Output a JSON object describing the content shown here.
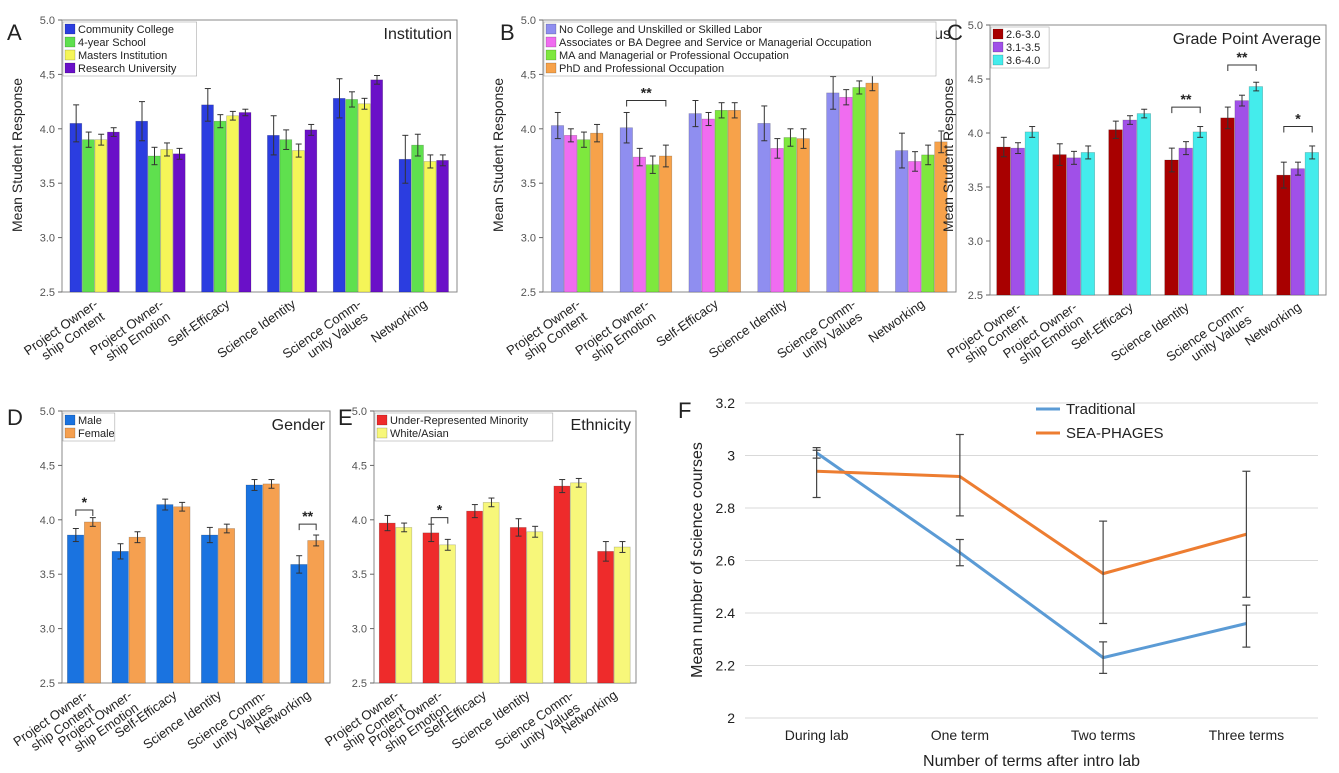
{
  "chart_data": [
    {
      "panel": "A",
      "type": "bar",
      "title": "Institution",
      "ylabel": "Mean Student Response",
      "xlabel": "",
      "ylim": [
        2.5,
        5.0
      ],
      "yticks": [
        "2.5",
        "3.0",
        "3.5",
        "4.0",
        "4.5",
        "5.0"
      ],
      "categories": [
        "Project Owner- ship Content",
        "Project Owner- ship Emotion",
        "Self-Efficacy",
        "Science Identity",
        "Science Comm- unity Values",
        "Networking"
      ],
      "legend_position": "top-left",
      "grid": false,
      "series": [
        {
          "name": "Community College",
          "color": "#2b3de0",
          "values": [
            4.05,
            4.07,
            4.22,
            3.94,
            4.28,
            3.72
          ],
          "err": [
            0.17,
            0.18,
            0.15,
            0.18,
            0.18,
            0.22
          ]
        },
        {
          "name": "4-year School",
          "color": "#5fe04e",
          "values": [
            3.9,
            3.75,
            4.07,
            3.9,
            4.27,
            3.85
          ],
          "err": [
            0.07,
            0.08,
            0.06,
            0.09,
            0.07,
            0.1
          ]
        },
        {
          "name": "Masters Institution",
          "color": "#f5f558",
          "values": [
            3.9,
            3.81,
            4.12,
            3.8,
            4.23,
            3.7
          ],
          "err": [
            0.05,
            0.06,
            0.04,
            0.06,
            0.05,
            0.06
          ]
        },
        {
          "name": "Research University",
          "color": "#6a10c8",
          "values": [
            3.97,
            3.77,
            4.15,
            3.99,
            4.45,
            3.71
          ],
          "err": [
            0.04,
            0.05,
            0.03,
            0.05,
            0.04,
            0.05
          ]
        }
      ],
      "significance": []
    },
    {
      "panel": "B",
      "type": "bar",
      "title": "Parental Socio-Economic Status",
      "ylabel": "Mean Student Response",
      "xlabel": "",
      "ylim": [
        2.5,
        5.0
      ],
      "yticks": [
        "2.5",
        "3.0",
        "3.5",
        "4.0",
        "4.5",
        "5.0"
      ],
      "categories": [
        "Project Owner- ship Content",
        "Project Owner- ship Emotion",
        "Self-Efficacy",
        "Science Identity",
        "Science Comm- unity Values",
        "Networking"
      ],
      "legend_position": "top-left",
      "grid": false,
      "series": [
        {
          "name": "No College and Unskilled or Skilled Labor",
          "color": "#8f8ef0",
          "values": [
            4.03,
            4.01,
            4.14,
            4.05,
            4.33,
            3.8
          ],
          "err": [
            0.12,
            0.14,
            0.12,
            0.16,
            0.15,
            0.16
          ]
        },
        {
          "name": "Associates or BA Degree and Service or Managerial Occupation",
          "color": "#f06cf0",
          "values": [
            3.94,
            3.74,
            4.09,
            3.82,
            4.29,
            3.7
          ],
          "err": [
            0.06,
            0.08,
            0.06,
            0.09,
            0.07,
            0.09
          ]
        },
        {
          "name": "MA and Managerial or Professional Occupation",
          "color": "#7ee83e",
          "values": [
            3.9,
            3.67,
            4.17,
            3.92,
            4.38,
            3.76
          ],
          "err": [
            0.07,
            0.08,
            0.07,
            0.08,
            0.06,
            0.09
          ]
        },
        {
          "name": "PhD and Professional Occupation",
          "color": "#f7a24a",
          "values": [
            3.96,
            3.75,
            4.17,
            3.91,
            4.42,
            3.88
          ],
          "err": [
            0.08,
            0.1,
            0.07,
            0.09,
            0.07,
            0.1
          ]
        }
      ],
      "significance": [
        {
          "cat": 1,
          "label": "**",
          "y": 4.26
        }
      ]
    },
    {
      "panel": "C",
      "type": "bar",
      "title": "Grade Point Average",
      "ylabel": "Mean Student Response",
      "xlabel": "",
      "ylim": [
        2.5,
        5.0
      ],
      "yticks": [
        "2.5",
        "3.0",
        "3.5",
        "4.0",
        "4.5",
        "5.0"
      ],
      "categories": [
        "Project Owner- ship Content",
        "Project Owner- ship Emotion",
        "Self-Efficacy",
        "Science Identity",
        "Science Comm- unity Values",
        "Networking"
      ],
      "legend_position": "top-left",
      "grid": false,
      "series": [
        {
          "name": "2.6-3.0",
          "color": "#a80000",
          "values": [
            3.87,
            3.8,
            4.03,
            3.75,
            4.14,
            3.61
          ],
          "err": [
            0.09,
            0.1,
            0.08,
            0.11,
            0.1,
            0.12
          ]
        },
        {
          "name": "3.1-3.5",
          "color": "#a050e8",
          "values": [
            3.86,
            3.77,
            4.12,
            3.86,
            4.3,
            3.67
          ],
          "err": [
            0.05,
            0.06,
            0.04,
            0.06,
            0.05,
            0.06
          ]
        },
        {
          "name": "3.6-4.0",
          "color": "#44ecec",
          "values": [
            4.01,
            3.82,
            4.18,
            4.01,
            4.43,
            3.82
          ],
          "err": [
            0.05,
            0.06,
            0.04,
            0.05,
            0.04,
            0.06
          ]
        }
      ],
      "significance": [
        {
          "cat": 3,
          "label": "**",
          "y": 4.24
        },
        {
          "cat": 4,
          "label": "**",
          "y": 4.63
        },
        {
          "cat": 5,
          "label": "*",
          "y": 4.06
        }
      ]
    },
    {
      "panel": "D",
      "type": "bar",
      "title": "Gender",
      "ylabel": "",
      "xlabel": "",
      "ylim": [
        2.5,
        5.0
      ],
      "yticks": [
        "2.5",
        "3.0",
        "3.5",
        "4.0",
        "4.5",
        "5.0"
      ],
      "categories": [
        "Project Owner- ship Content",
        "Project Owner- ship Emotion",
        "Self-Efficacy",
        "Science Identity",
        "Science Comm- unity Values",
        "Networking"
      ],
      "legend_position": "top-left",
      "grid": false,
      "series": [
        {
          "name": "Male",
          "color": "#1a73e0",
          "values": [
            3.86,
            3.71,
            4.14,
            3.86,
            4.32,
            3.59
          ],
          "err": [
            0.06,
            0.07,
            0.05,
            0.07,
            0.05,
            0.08
          ]
        },
        {
          "name": "Female",
          "color": "#f5a050",
          "values": [
            3.98,
            3.84,
            4.12,
            3.92,
            4.33,
            3.81
          ],
          "err": [
            0.04,
            0.05,
            0.04,
            0.04,
            0.04,
            0.05
          ]
        }
      ],
      "significance": [
        {
          "cat": 0,
          "label": "*",
          "y": 4.09
        },
        {
          "cat": 5,
          "label": "**",
          "y": 3.96
        }
      ]
    },
    {
      "panel": "E",
      "type": "bar",
      "title": "Ethnicity",
      "ylabel": "",
      "xlabel": "",
      "ylim": [
        2.5,
        5.0
      ],
      "yticks": [
        "2.5",
        "3.0",
        "3.5",
        "4.0",
        "4.5",
        "5.0"
      ],
      "categories": [
        "Project Owner- ship Content",
        "Project Owner- ship Emotion",
        "Self-Efficacy",
        "Science Identity",
        "Science Comm- unity Values",
        "Networking"
      ],
      "legend_position": "top-left",
      "grid": false,
      "series": [
        {
          "name": "Under-Represented Minority",
          "color": "#ee2b2b",
          "values": [
            3.97,
            3.88,
            4.08,
            3.93,
            4.31,
            3.71
          ],
          "err": [
            0.07,
            0.08,
            0.06,
            0.08,
            0.06,
            0.09
          ]
        },
        {
          "name": "White/Asian",
          "color": "#f7f77a",
          "values": [
            3.93,
            3.77,
            4.16,
            3.89,
            4.34,
            3.75
          ],
          "err": [
            0.04,
            0.05,
            0.04,
            0.05,
            0.04,
            0.05
          ]
        }
      ],
      "significance": [
        {
          "cat": 1,
          "label": "*",
          "y": 4.02
        }
      ]
    },
    {
      "panel": "F",
      "type": "line",
      "title": "",
      "ylabel": "Mean number of science courses",
      "xlabel": "Number of terms after intro lab",
      "ylim": [
        2.0,
        3.2
      ],
      "yticks": [
        "2",
        "2.2",
        "2.4",
        "2.6",
        "2.8",
        "3",
        "3.2"
      ],
      "x": [
        "During lab",
        "One term",
        "Two terms",
        "Three terms"
      ],
      "legend_position": "top-right",
      "grid": true,
      "series": [
        {
          "name": "Traditional",
          "color": "#5b9bd5",
          "values": [
            3.01,
            2.63,
            2.23,
            2.36
          ],
          "err_low": [
            0.02,
            0.05,
            0.06,
            0.09
          ],
          "err_high": [
            0.02,
            0.05,
            0.06,
            0.07
          ]
        },
        {
          "name": "SEA-PHAGES",
          "color": "#ed7d31",
          "values": [
            2.94,
            2.92,
            2.55,
            2.7
          ],
          "err_low": [
            0.1,
            0.15,
            0.19,
            0.24
          ],
          "err_high": [
            0.08,
            0.16,
            0.2,
            0.24
          ]
        }
      ]
    }
  ]
}
